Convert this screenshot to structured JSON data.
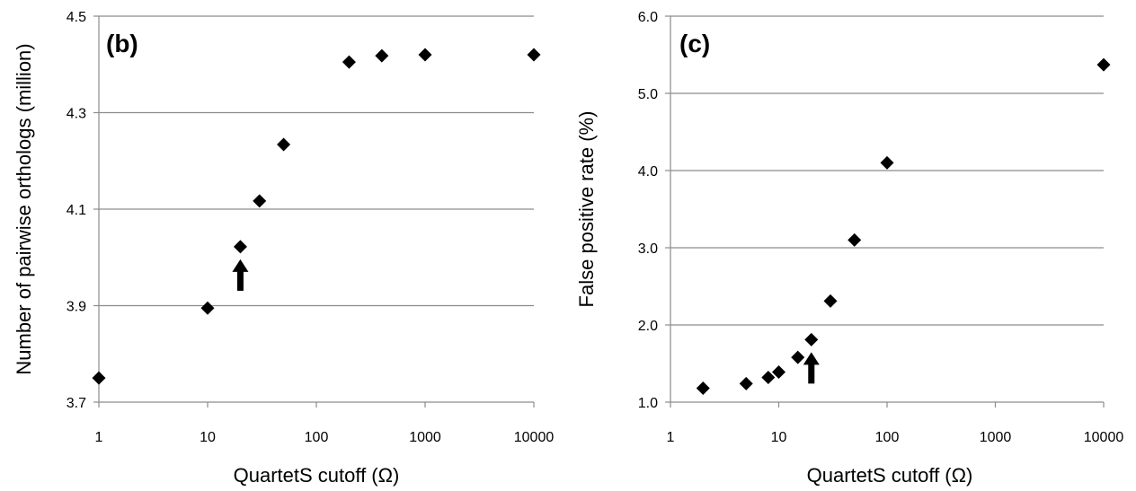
{
  "chart_data": [
    {
      "type": "scatter",
      "panel_label": "(b)",
      "xlabel": "QuartetS cutoff (Ω)",
      "ylabel": "Number of pairwise orthologs (million)",
      "xscale": "log",
      "xlim": [
        1,
        10000
      ],
      "ylim": [
        3.7,
        4.5
      ],
      "xticks": [
        "1",
        "10",
        "100",
        "1000",
        "10000"
      ],
      "yticks": [
        "3.7",
        "3.9",
        "4.1",
        "4.3",
        "4.5"
      ],
      "grid": "horizontal",
      "marker": "diamond",
      "color": "#000000",
      "points": [
        {
          "x": 1,
          "y": 3.75
        },
        {
          "x": 10,
          "y": 3.895
        },
        {
          "x": 20,
          "y": 4.022
        },
        {
          "x": 30,
          "y": 4.117
        },
        {
          "x": 50,
          "y": 4.234
        },
        {
          "x": 200,
          "y": 4.405
        },
        {
          "x": 400,
          "y": 4.418
        },
        {
          "x": 1000,
          "y": 4.42
        },
        {
          "x": 10000,
          "y": 4.42
        }
      ],
      "arrow_at_x": 20
    },
    {
      "type": "scatter",
      "panel_label": "(c)",
      "xlabel": "QuartetS cutoff (Ω)",
      "ylabel": "False positive rate (%)",
      "xscale": "log",
      "xlim": [
        1,
        10000
      ],
      "ylim": [
        1.0,
        6.0
      ],
      "xticks": [
        "1",
        "10",
        "100",
        "1000",
        "10000"
      ],
      "yticks": [
        "1.0",
        "2.0",
        "3.0",
        "4.0",
        "5.0",
        "6.0"
      ],
      "grid": "horizontal",
      "marker": "diamond",
      "color": "#000000",
      "points": [
        {
          "x": 2,
          "y": 1.18
        },
        {
          "x": 5,
          "y": 1.24
        },
        {
          "x": 8,
          "y": 1.32
        },
        {
          "x": 10,
          "y": 1.39
        },
        {
          "x": 15,
          "y": 1.58
        },
        {
          "x": 20,
          "y": 1.81
        },
        {
          "x": 30,
          "y": 2.31
        },
        {
          "x": 50,
          "y": 3.1
        },
        {
          "x": 100,
          "y": 4.1
        },
        {
          "x": 10000,
          "y": 5.37
        }
      ],
      "arrow_at_x": 20
    }
  ]
}
